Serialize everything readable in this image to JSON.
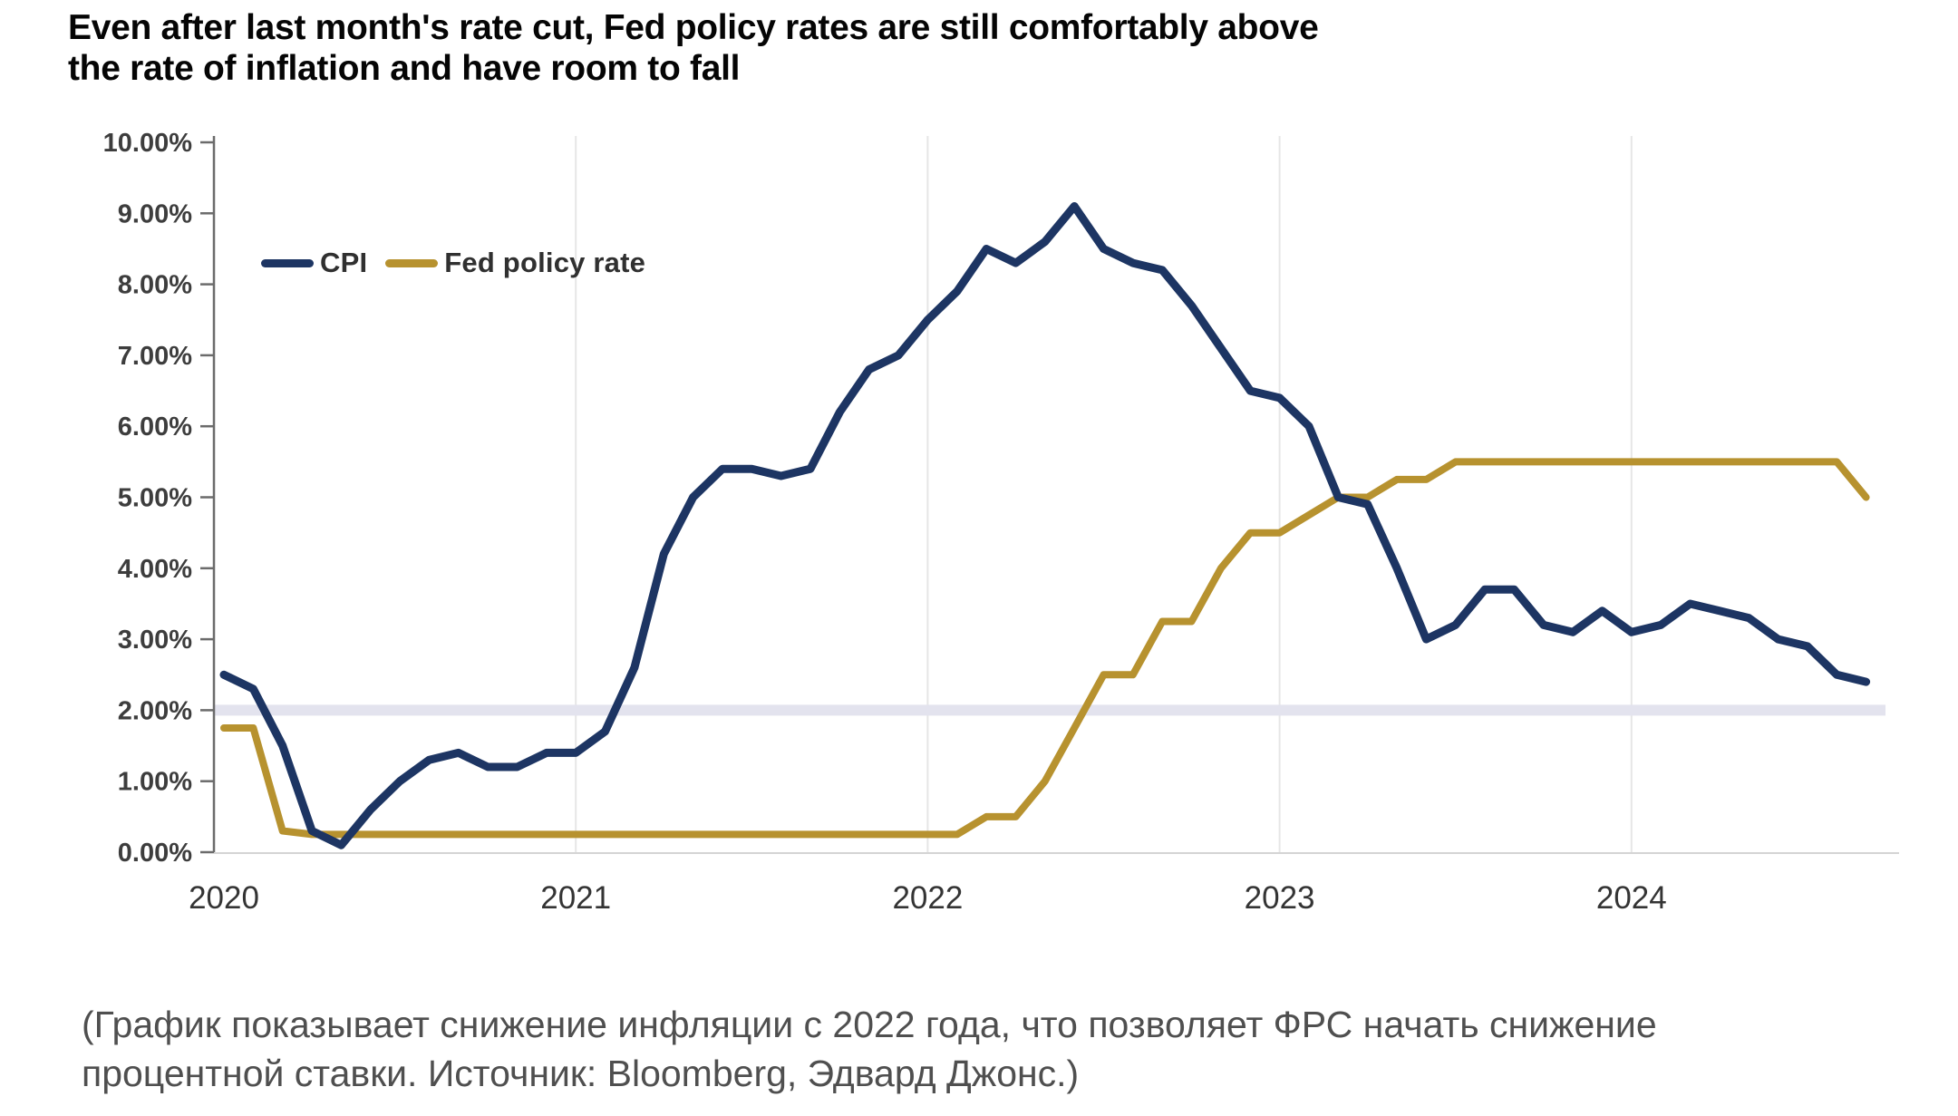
{
  "title": {
    "line1": "Even after last month's rate cut, Fed policy rates are still comfortably above",
    "line2": "the rate of inflation and have room to fall"
  },
  "caption": {
    "line1": "(График показывает снижение инфляции с 2022 года, что позволяет ФРС начать снижение",
    "line2": "процентной ставки. Источник: Bloomberg, Эдвард Джонс.)"
  },
  "colors": {
    "cpi": "#1d3563",
    "fed": "#b7922f",
    "reference_band": "#e3e3ee",
    "grid": "#e6e6e6",
    "y_axis": "#6b6b6b",
    "x_axis": "#d4d4d4",
    "tick_label": "#3d3d3d"
  },
  "chart_data": {
    "type": "line",
    "title": "Even after last month's rate cut, Fed policy rates are still comfortably above the rate of inflation and have room to fall",
    "x_unit": "month",
    "x_start": "2020-01",
    "x_end": "2024-09",
    "x_tick_labels": [
      "2020",
      "2021",
      "2022",
      "2023",
      "2024"
    ],
    "y_tick_labels": [
      "0.00%",
      "1.00%",
      "2.00%",
      "3.00%",
      "4.00%",
      "5.00%",
      "6.00%",
      "7.00%",
      "8.00%",
      "9.00%",
      "10.00%"
    ],
    "ylim": [
      0,
      10
    ],
    "grid": "vertical-year-lines",
    "legend_position": "inside-top-left",
    "reference_band": {
      "value": 2.0,
      "label": "2% level band"
    },
    "series": [
      {
        "name": "CPI",
        "color_key": "cpi",
        "values": [
          2.5,
          2.3,
          1.5,
          0.3,
          0.1,
          0.6,
          1.0,
          1.3,
          1.4,
          1.2,
          1.2,
          1.4,
          1.4,
          1.7,
          2.6,
          4.2,
          5.0,
          5.4,
          5.4,
          5.3,
          5.4,
          6.2,
          6.8,
          7.0,
          7.5,
          7.9,
          8.5,
          8.3,
          8.6,
          9.1,
          8.5,
          8.3,
          8.2,
          7.7,
          7.1,
          6.5,
          6.4,
          6.0,
          5.0,
          4.9,
          4.0,
          3.0,
          3.2,
          3.7,
          3.7,
          3.2,
          3.1,
          3.4,
          3.1,
          3.2,
          3.5,
          3.4,
          3.3,
          3.0,
          2.9,
          2.5,
          2.4
        ]
      },
      {
        "name": "Fed policy rate",
        "color_key": "fed",
        "values": [
          1.75,
          1.75,
          0.3,
          0.25,
          0.25,
          0.25,
          0.25,
          0.25,
          0.25,
          0.25,
          0.25,
          0.25,
          0.25,
          0.25,
          0.25,
          0.25,
          0.25,
          0.25,
          0.25,
          0.25,
          0.25,
          0.25,
          0.25,
          0.25,
          0.25,
          0.25,
          0.5,
          0.5,
          1.0,
          1.75,
          2.5,
          2.5,
          3.25,
          3.25,
          4.0,
          4.5,
          4.5,
          4.75,
          5.0,
          5.0,
          5.25,
          5.25,
          5.5,
          5.5,
          5.5,
          5.5,
          5.5,
          5.5,
          5.5,
          5.5,
          5.5,
          5.5,
          5.5,
          5.5,
          5.5,
          5.5,
          5.0
        ]
      }
    ]
  }
}
